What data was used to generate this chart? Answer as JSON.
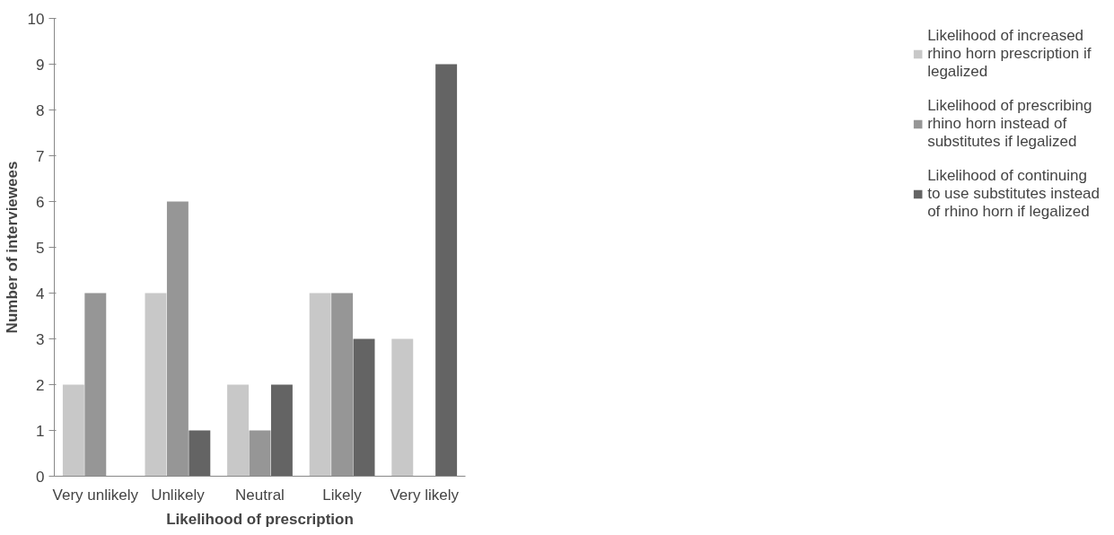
{
  "chart_data": {
    "type": "bar",
    "xlabel": "Likelihood of prescription",
    "ylabel": "Number of interviewees",
    "categories": [
      "Very unlikely",
      "Unlikely",
      "Neutral",
      "Likely",
      "Very likely"
    ],
    "series": [
      {
        "name": "Likelihood of increased rhino horn prescription if legalized",
        "color": "#c8c8c8",
        "values": [
          2,
          4,
          2,
          4,
          3
        ]
      },
      {
        "name": "Likelihood of prescribing rhino horn instead of substitutes if legalized",
        "color": "#969696",
        "values": [
          4,
          6,
          1,
          4,
          0
        ]
      },
      {
        "name": "Likelihood of continuing to use substitutes instead of rhino horn if legalized",
        "color": "#646464",
        "values": [
          0,
          1,
          2,
          3,
          9
        ]
      }
    ],
    "ylim": [
      0,
      10
    ],
    "yticks": [
      0,
      1,
      2,
      3,
      4,
      5,
      6,
      7,
      8,
      9,
      10
    ],
    "grid": false,
    "legend": "right"
  }
}
